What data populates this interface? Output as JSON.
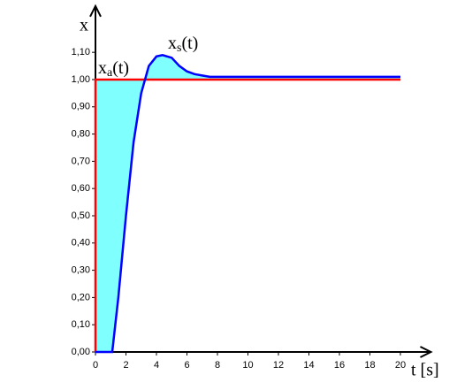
{
  "chart_data": {
    "type": "line",
    "y_label": "x",
    "x_label": "t [s]",
    "xlim": [
      0,
      22
    ],
    "ylim": [
      0,
      1.27
    ],
    "xticks": [
      0,
      2,
      4,
      6,
      8,
      10,
      12,
      14,
      16,
      18,
      20
    ],
    "yticks": [
      {
        "value": 0,
        "label": "0,00"
      },
      {
        "value": 0.1,
        "label": "0,10"
      },
      {
        "value": 0.2,
        "label": "0,20"
      },
      {
        "value": 0.3,
        "label": "0,30"
      },
      {
        "value": 0.4,
        "label": "0,40"
      },
      {
        "value": 0.5,
        "label": "0,50"
      },
      {
        "value": 0.6,
        "label": "0,60"
      },
      {
        "value": 0.7,
        "label": "0,70"
      },
      {
        "value": 0.8,
        "label": "0,80"
      },
      {
        "value": 0.9,
        "label": "0,90"
      },
      {
        "value": 1.0,
        "label": "1,00"
      },
      {
        "value": 1.1,
        "label": "1,10"
      }
    ],
    "fill_color": "#80ffff",
    "series": [
      {
        "label": {
          "main": "x",
          "sub": "a",
          "end": "(t)"
        },
        "color": "#ff0000",
        "x": [
          0,
          0,
          20
        ],
        "values": [
          0,
          1,
          1
        ]
      },
      {
        "label": {
          "main": "x",
          "sub": "s",
          "end": "(t)"
        },
        "color": "#0000ff",
        "x": [
          0,
          1.1,
          1.5,
          2,
          2.5,
          3,
          3.5,
          4,
          4.4,
          5,
          5.5,
          6,
          6.5,
          7,
          7.5,
          10,
          17.5,
          20
        ],
        "values": [
          0,
          0,
          0.2,
          0.5,
          0.77,
          0.95,
          1.05,
          1.085,
          1.09,
          1.08,
          1.05,
          1.03,
          1.02,
          1.015,
          1.01,
          1.01,
          1.01,
          1.01
        ]
      }
    ]
  }
}
